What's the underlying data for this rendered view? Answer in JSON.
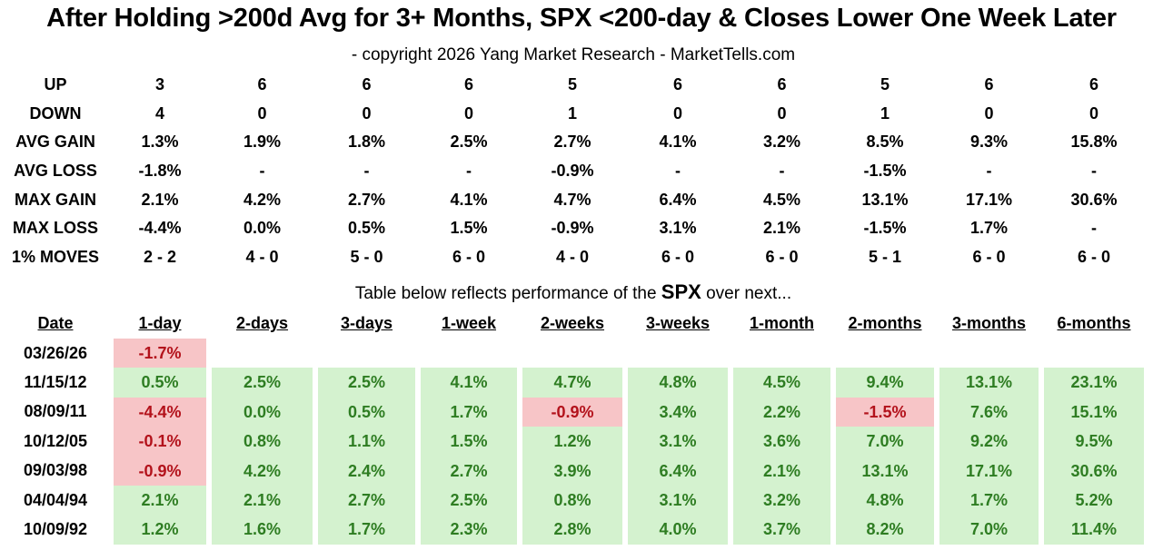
{
  "chart_data": {
    "type": "table",
    "title": "After Holding >200d Avg  for 3+ Months, SPX <200-day & Closes Lower One Week Later",
    "subtitle": "- copyright 2026 Yang Market Research - MarketTells.com",
    "caption_prefix": "Table below reflects performance of the",
    "caption_em": "SPX",
    "caption_suffix": "over next...",
    "summary": [
      {
        "label": "UP",
        "values": [
          "3",
          "6",
          "6",
          "6",
          "5",
          "6",
          "6",
          "5",
          "6",
          "6"
        ]
      },
      {
        "label": "DOWN",
        "values": [
          "4",
          "0",
          "0",
          "0",
          "1",
          "0",
          "0",
          "1",
          "0",
          "0"
        ]
      },
      {
        "label": "AVG GAIN",
        "values": [
          "1.3%",
          "1.9%",
          "1.8%",
          "2.5%",
          "2.7%",
          "4.1%",
          "3.2%",
          "8.5%",
          "9.3%",
          "15.8%"
        ]
      },
      {
        "label": "AVG LOSS",
        "values": [
          "-1.8%",
          "-",
          "-",
          "-",
          "-0.9%",
          "-",
          "-",
          "-1.5%",
          "-",
          "-"
        ]
      },
      {
        "label": "MAX GAIN",
        "values": [
          "2.1%",
          "4.2%",
          "2.7%",
          "4.1%",
          "4.7%",
          "6.4%",
          "4.5%",
          "13.1%",
          "17.1%",
          "30.6%"
        ]
      },
      {
        "label": "MAX LOSS",
        "values": [
          "-4.4%",
          "0.0%",
          "0.5%",
          "1.5%",
          "-0.9%",
          "3.1%",
          "2.1%",
          "-1.5%",
          "1.7%",
          "-"
        ]
      },
      {
        "label": "1% MOVES",
        "values": [
          "2 - 2",
          "4 - 0",
          "5 - 0",
          "6 - 0",
          "4 - 0",
          "6 - 0",
          "6 - 0",
          "5 - 1",
          "6 - 0",
          "6 - 0"
        ]
      }
    ],
    "columns": [
      "Date",
      "1-day",
      "2-days",
      "3-days",
      "1-week",
      "2-weeks",
      "3-weeks",
      "1-month",
      "2-months",
      "3-months",
      "6-months"
    ],
    "rows": [
      {
        "date": "03/26/26",
        "values": [
          "-1.7%",
          "",
          "",
          "",
          "",
          "",
          "",
          "",
          "",
          ""
        ]
      },
      {
        "date": "11/15/12",
        "values": [
          "0.5%",
          "2.5%",
          "2.5%",
          "4.1%",
          "4.7%",
          "4.8%",
          "4.5%",
          "9.4%",
          "13.1%",
          "23.1%"
        ]
      },
      {
        "date": "08/09/11",
        "values": [
          "-4.4%",
          "0.0%",
          "0.5%",
          "1.7%",
          "-0.9%",
          "3.4%",
          "2.2%",
          "-1.5%",
          "7.6%",
          "15.1%"
        ]
      },
      {
        "date": "10/12/05",
        "values": [
          "-0.1%",
          "0.8%",
          "1.1%",
          "1.5%",
          "1.2%",
          "3.1%",
          "3.6%",
          "7.0%",
          "9.2%",
          "9.5%"
        ]
      },
      {
        "date": "09/03/98",
        "values": [
          "-0.9%",
          "4.2%",
          "2.4%",
          "2.7%",
          "3.9%",
          "6.4%",
          "2.1%",
          "13.1%",
          "17.1%",
          "30.6%"
        ]
      },
      {
        "date": "04/04/94",
        "values": [
          "2.1%",
          "2.1%",
          "2.7%",
          "2.5%",
          "0.8%",
          "3.1%",
          "3.2%",
          "4.8%",
          "1.7%",
          "5.2%"
        ]
      },
      {
        "date": "10/09/92",
        "values": [
          "1.2%",
          "1.6%",
          "1.7%",
          "2.3%",
          "2.8%",
          "4.0%",
          "3.7%",
          "8.2%",
          "7.0%",
          "11.4%"
        ]
      }
    ]
  },
  "colors": {
    "positive_text": "#2e7d22",
    "positive_bg": "#d4f2cf",
    "negative_text": "#b3121b",
    "negative_bg": "#f7c5c7"
  }
}
